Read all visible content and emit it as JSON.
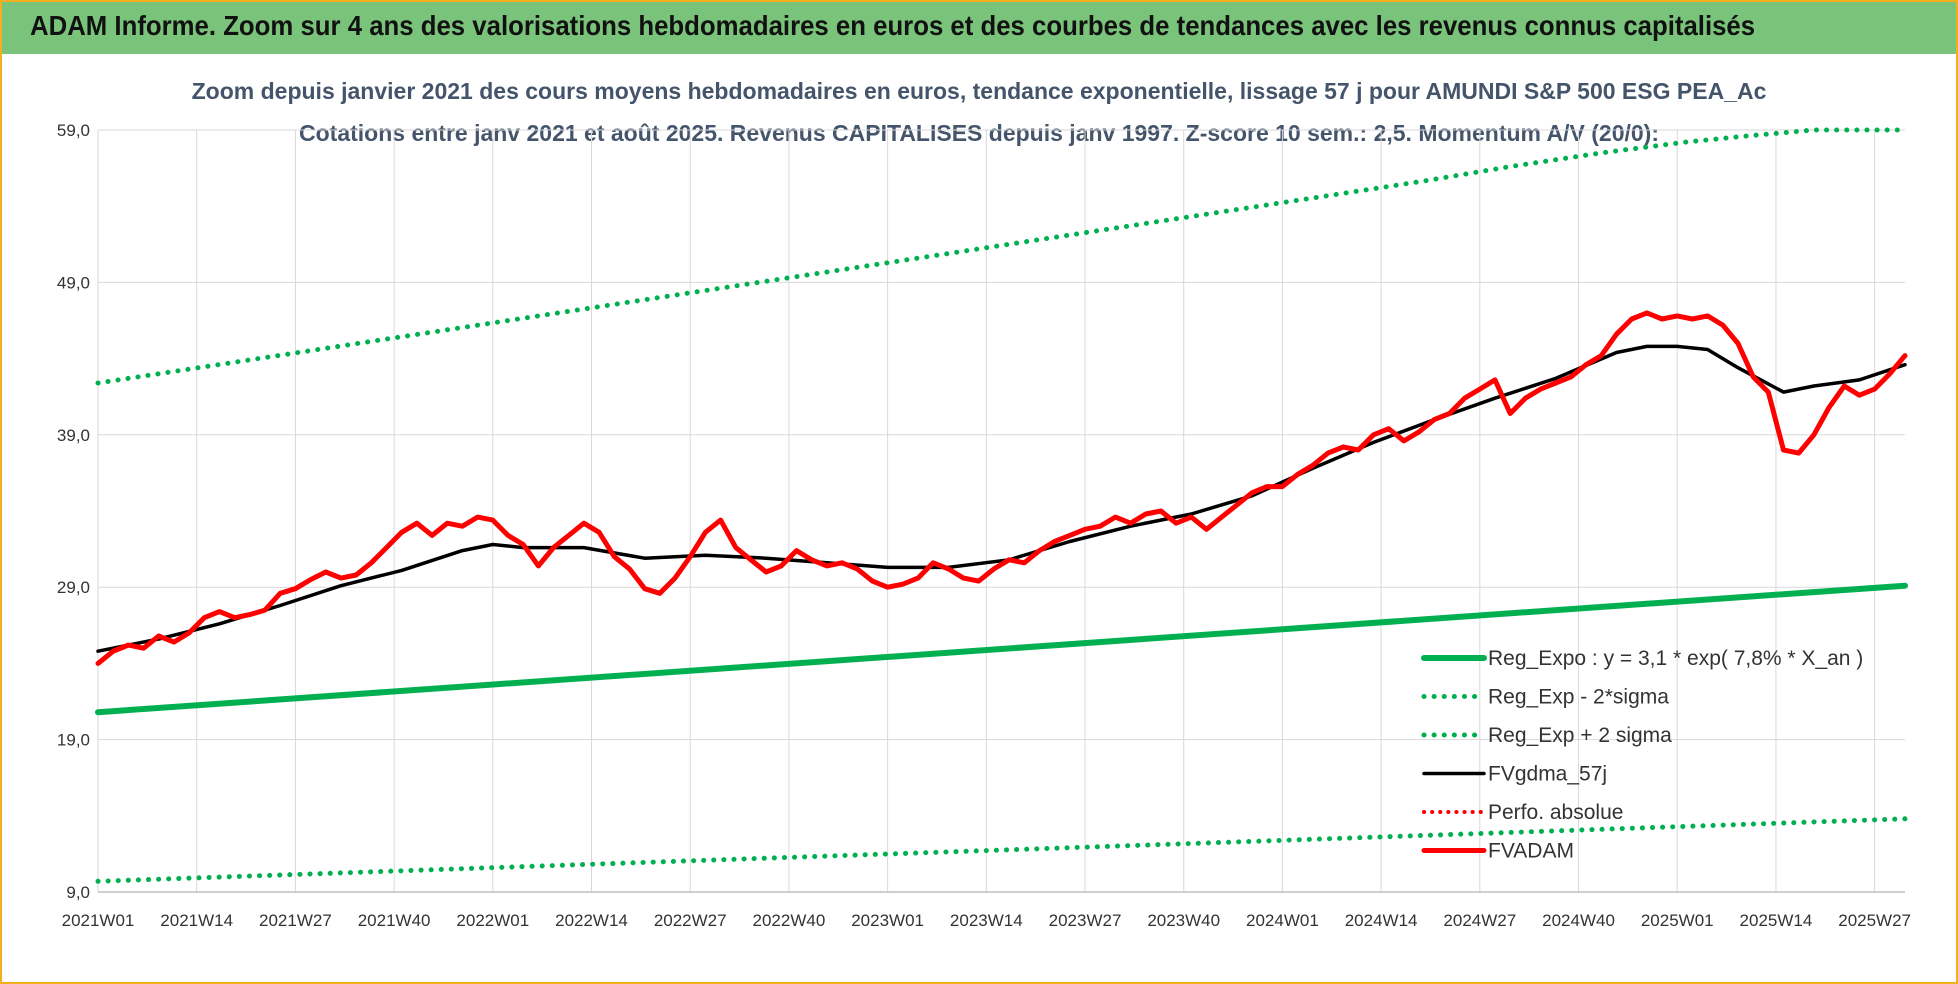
{
  "banner": "ADAM Informe. Zoom sur 4 ans des valorisations hebdomadaires en euros et des courbes de tendances avec les revenus connus capitalisés",
  "colors": {
    "banner_bg": "#7ac37a",
    "green": "#00b050",
    "black": "#000000",
    "red": "#ff0000",
    "frame": "#f2b01e"
  },
  "chart_data": {
    "type": "line",
    "title": "Zoom depuis janvier 2021 des cours moyens hebdomadaires en euros, tendance exponentielle, lissage 57 j pour AMUNDI S&P 500 ESG PEA_Ac",
    "subtitle": "Cotations entre janv 2021 et août 2025. Revenus CAPITALISES depuis janv 1997. Z-score 10 sem.: 2,5. Momentum A/V (20/0):",
    "ylim": [
      9,
      59
    ],
    "yticks": [
      "9,0",
      "19,0",
      "29,0",
      "39,0",
      "49,0",
      "59,0"
    ],
    "xticks": [
      "2021W01",
      "2021W14",
      "2021W27",
      "2021W40",
      "2022W01",
      "2022W14",
      "2022W27",
      "2022W40",
      "2023W01",
      "2023W14",
      "2023W27",
      "2023W40",
      "2024W01",
      "2024W14",
      "2024W27",
      "2024W40",
      "2025W01",
      "2025W14",
      "2025W27"
    ],
    "x_tick_weeks": [
      0,
      13,
      26,
      39,
      52,
      65,
      78,
      91,
      104,
      117,
      130,
      143,
      156,
      169,
      182,
      195,
      208,
      221,
      234
    ],
    "x_range_weeks": [
      0,
      238
    ],
    "legend_position": "bottom-right",
    "grid": true,
    "series": [
      {
        "name": "Reg_Expo : y = 3,1 * exp( 7,8% *  X_an )",
        "style": "solid",
        "color": "#00b050",
        "x": [
          0,
          238
        ],
        "values": [
          20.8,
          29.1
        ]
      },
      {
        "name": "Reg_Exp - 2*sigma",
        "style": "dotted",
        "color": "#00b050",
        "x": [
          0,
          238
        ],
        "values": [
          9.7,
          13.8
        ]
      },
      {
        "name": "Reg_Exp + 2 sigma",
        "style": "dotted",
        "color": "#00b050",
        "x": [
          0,
          174,
          186,
          198,
          209,
          217,
          226,
          238
        ],
        "values": [
          42.4,
          55.6,
          56.6,
          57.5,
          58.2,
          58.6,
          59.0,
          59.0
        ]
      },
      {
        "name": "FVgdma_57j",
        "style": "solid",
        "color": "#000000",
        "x": [
          0,
          8,
          16,
          24,
          32,
          40,
          48,
          52,
          56,
          64,
          72,
          80,
          88,
          96,
          104,
          112,
          120,
          128,
          136,
          144,
          152,
          160,
          168,
          176,
          184,
          192,
          200,
          204,
          208,
          212,
          216,
          222,
          226,
          232,
          238
        ],
        "values": [
          24.8,
          25.6,
          26.6,
          27.8,
          29.1,
          30.1,
          31.4,
          31.8,
          31.6,
          31.6,
          30.9,
          31.1,
          30.9,
          30.6,
          30.3,
          30.3,
          30.8,
          32.0,
          33.0,
          33.8,
          35.0,
          36.8,
          38.5,
          40.0,
          41.4,
          42.7,
          44.4,
          44.8,
          44.8,
          44.6,
          43.4,
          41.8,
          42.2,
          42.6,
          43.6
        ]
      },
      {
        "name": "Perfo. absolue",
        "style": "dotted",
        "color": "#ff0000",
        "x": [],
        "values": []
      },
      {
        "name": "FVADAM",
        "style": "solid",
        "color": "#ff0000",
        "x": [
          0,
          2,
          4,
          6,
          8,
          10,
          12,
          14,
          16,
          18,
          20,
          22,
          24,
          26,
          28,
          30,
          32,
          34,
          36,
          38,
          40,
          42,
          44,
          46,
          48,
          50,
          52,
          54,
          56,
          58,
          60,
          62,
          64,
          66,
          68,
          70,
          72,
          74,
          76,
          78,
          80,
          82,
          84,
          86,
          88,
          90,
          92,
          94,
          96,
          98,
          100,
          102,
          104,
          106,
          108,
          110,
          112,
          114,
          116,
          118,
          120,
          122,
          124,
          126,
          128,
          130,
          132,
          134,
          136,
          138,
          140,
          142,
          144,
          146,
          148,
          150,
          152,
          154,
          156,
          158,
          160,
          162,
          164,
          166,
          168,
          170,
          172,
          174,
          176,
          178,
          180,
          182,
          184,
          186,
          188,
          190,
          192,
          194,
          196,
          198,
          200,
          202,
          204,
          206,
          208,
          210,
          212,
          214,
          216,
          218,
          220,
          222,
          224,
          226,
          228,
          230,
          232,
          234,
          236,
          238
        ],
        "values": [
          24.0,
          24.8,
          25.2,
          25.0,
          25.8,
          25.4,
          26.0,
          27.0,
          27.4,
          27.0,
          27.2,
          27.5,
          28.6,
          28.9,
          29.5,
          30.0,
          29.6,
          29.8,
          30.6,
          31.6,
          32.6,
          33.2,
          32.4,
          33.2,
          33.0,
          33.6,
          33.4,
          32.4,
          31.8,
          30.4,
          31.6,
          32.4,
          33.2,
          32.6,
          31.0,
          30.2,
          28.9,
          28.6,
          29.6,
          31.0,
          32.6,
          33.4,
          31.6,
          30.8,
          30.0,
          30.4,
          31.4,
          30.8,
          30.4,
          30.6,
          30.2,
          29.4,
          29.0,
          29.2,
          29.6,
          30.6,
          30.2,
          29.6,
          29.4,
          30.2,
          30.8,
          30.6,
          31.4,
          32.0,
          32.4,
          32.8,
          33.0,
          33.6,
          33.2,
          33.8,
          34.0,
          33.2,
          33.6,
          32.8,
          33.6,
          34.4,
          35.2,
          35.6,
          35.6,
          36.4,
          37.0,
          37.8,
          38.2,
          38.0,
          39.0,
          39.4,
          38.6,
          39.2,
          40.0,
          40.4,
          41.4,
          42.0,
          42.6,
          40.4,
          41.4,
          42.0,
          42.4,
          42.8,
          43.6,
          44.2,
          45.6,
          46.6,
          47.0,
          46.6,
          46.8,
          46.6,
          46.8,
          46.2,
          45.0,
          42.8,
          41.8,
          38.0,
          37.8,
          39.0,
          40.8,
          42.2,
          41.6,
          42.0,
          43.0,
          44.2
        ]
      }
    ]
  }
}
